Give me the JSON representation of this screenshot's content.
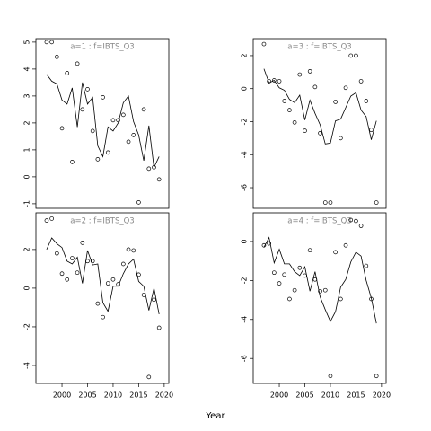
{
  "xlabel": "Year",
  "chart_data": [
    {
      "type": "scatter",
      "title": "a=1  :  f=IBTS_Q3",
      "x": [
        1997,
        1998,
        1999,
        2000,
        2001,
        2002,
        2003,
        2004,
        2005,
        2006,
        2007,
        2008,
        2009,
        2010,
        2011,
        2012,
        2013,
        2014,
        2015,
        2016,
        2017,
        2018,
        2019
      ],
      "series": [
        {
          "mode": "points",
          "color": "#000000",
          "values": [
            5.0,
            5.0,
            4.45,
            1.8,
            3.85,
            0.55,
            4.2,
            2.5,
            3.25,
            1.7,
            0.65,
            2.95,
            0.9,
            2.1,
            2.1,
            2.3,
            1.3,
            1.55,
            -0.95,
            2.5,
            0.3,
            0.35,
            -0.1
          ]
        },
        {
          "mode": "line",
          "color": "#000000",
          "values": [
            3.8,
            3.55,
            3.45,
            2.85,
            2.7,
            3.3,
            1.85,
            3.5,
            2.7,
            2.95,
            1.15,
            0.75,
            1.85,
            1.7,
            2.0,
            2.75,
            3.0,
            2.05,
            1.55,
            0.6,
            1.9,
            0.35,
            0.75
          ]
        }
      ],
      "xlim": [
        1994.9,
        2020.9
      ],
      "ylim": [
        -1.17,
        5.13
      ],
      "yticks": [
        -1,
        0,
        1,
        2,
        3,
        4,
        5
      ]
    },
    {
      "type": "scatter",
      "title": "a=2  :  f=IBTS_Q3",
      "x": [
        1997,
        1998,
        1999,
        2000,
        2001,
        2002,
        2003,
        2004,
        2005,
        2006,
        2007,
        2008,
        2009,
        2010,
        2011,
        2012,
        2013,
        2014,
        2015,
        2016,
        2017,
        2018,
        2019
      ],
      "series": [
        {
          "mode": "points",
          "color": "#000000",
          "values": [
            3.5,
            3.6,
            1.8,
            0.75,
            0.45,
            1.55,
            0.8,
            2.35,
            1.4,
            1.4,
            -0.8,
            -1.5,
            0.25,
            0.45,
            0.2,
            1.25,
            2.0,
            1.95,
            0.7,
            -0.35,
            -4.6,
            -0.6,
            -2.05
          ]
        },
        {
          "mode": "line",
          "color": "#000000",
          "values": [
            2.0,
            2.6,
            2.3,
            2.1,
            1.4,
            1.25,
            1.6,
            0.25,
            1.95,
            1.2,
            1.25,
            -0.75,
            -1.2,
            0.1,
            0.1,
            0.75,
            1.25,
            1.5,
            0.35,
            0.1,
            -1.15,
            0.0,
            -1.35
          ]
        }
      ],
      "xlim": [
        1994.9,
        2020.9
      ],
      "ylim": [
        -4.93,
        3.9
      ],
      "yticks": [
        -4,
        -2,
        0,
        2
      ],
      "xticks": [
        2000,
        2005,
        2010,
        2015,
        2020
      ]
    },
    {
      "type": "scatter",
      "title": "a=3  :  f=IBTS_Q3",
      "x": [
        1997,
        1998,
        1999,
        2000,
        2001,
        2002,
        2003,
        2004,
        2005,
        2006,
        2007,
        2008,
        2009,
        2010,
        2011,
        2012,
        2013,
        2014,
        2015,
        2016,
        2017,
        2018,
        2019
      ],
      "series": [
        {
          "mode": "points",
          "color": "#000000",
          "values": [
            2.7,
            0.45,
            0.5,
            0.45,
            -0.75,
            -1.3,
            -2.05,
            0.85,
            -2.55,
            1.05,
            0.1,
            -2.7,
            -6.9,
            -6.9,
            -0.8,
            -3.0,
            0.05,
            2.0,
            2.0,
            0.45,
            -0.75,
            -2.5,
            -6.9
          ]
        },
        {
          "mode": "line",
          "color": "#000000",
          "values": [
            1.2,
            0.35,
            0.5,
            0.05,
            -0.1,
            -0.65,
            -0.85,
            -0.4,
            -1.9,
            -0.7,
            -1.5,
            -2.2,
            -3.35,
            -3.3,
            -1.95,
            -1.85,
            -1.15,
            -0.45,
            -0.25,
            -1.3,
            -1.7,
            -3.1,
            -1.95
          ]
        }
      ],
      "xlim": [
        1994.9,
        2020.9
      ],
      "ylim": [
        -7.25,
        3.03
      ],
      "yticks": [
        -6,
        -4,
        -2,
        0,
        2
      ]
    },
    {
      "type": "scatter",
      "title": "a=4  :  f=IBTS_Q3",
      "x": [
        1997,
        1998,
        1999,
        2000,
        2001,
        2002,
        2003,
        2004,
        2005,
        2006,
        2007,
        2008,
        2009,
        2010,
        2011,
        2012,
        2013,
        2014,
        2015,
        2016,
        2017,
        2018,
        2019
      ],
      "series": [
        {
          "mode": "points",
          "color": "#000000",
          "values": [
            -0.2,
            -0.1,
            -1.6,
            -2.15,
            -1.7,
            -2.95,
            -2.5,
            -1.35,
            -1.75,
            -0.45,
            -1.95,
            -2.55,
            -2.5,
            -6.9,
            -0.55,
            -2.95,
            -0.2,
            1.1,
            1.05,
            0.8,
            -1.25,
            -2.95,
            -6.9
          ]
        },
        {
          "mode": "line",
          "color": "#000000",
          "values": [
            -0.3,
            0.2,
            -1.1,
            -0.4,
            -1.15,
            -1.15,
            -1.55,
            -1.75,
            -1.3,
            -2.55,
            -1.55,
            -2.85,
            -3.5,
            -4.1,
            -3.6,
            -2.35,
            -1.95,
            -1.05,
            -0.55,
            -0.75,
            -2.0,
            -2.9,
            -4.2
          ]
        }
      ],
      "xlim": [
        1994.9,
        2020.9
      ],
      "ylim": [
        -7.28,
        1.47
      ],
      "yticks": [
        -6,
        -4,
        -2,
        0
      ],
      "xticks": [
        2000,
        2005,
        2010,
        2015,
        2020
      ]
    }
  ]
}
